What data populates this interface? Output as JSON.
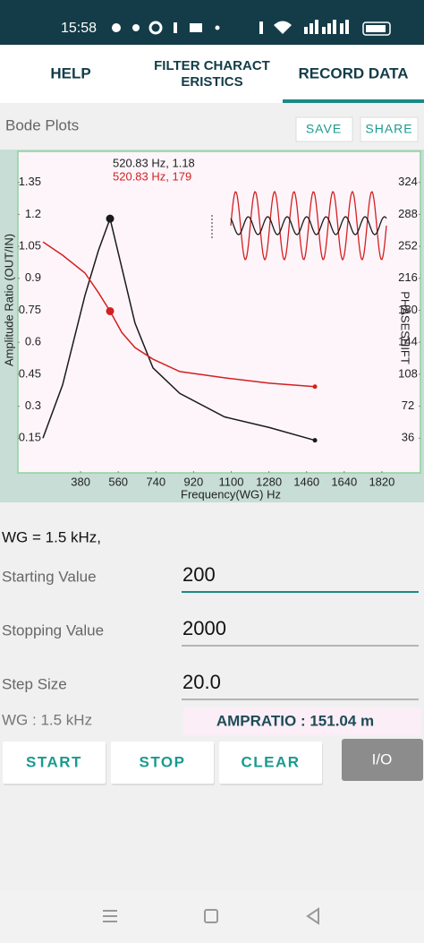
{
  "status_bar": {
    "time": "15:58"
  },
  "tabs": [
    {
      "label_lines": [
        "HELP"
      ]
    },
    {
      "label_lines": [
        "FILTER CHARACT",
        "ERISTICS"
      ]
    },
    {
      "label_lines": [
        "RECORD DATA"
      ]
    }
  ],
  "section": {
    "title": "Bode Plots",
    "buttons": [
      "SAVE",
      "SHARE"
    ]
  },
  "chart_data": {
    "type": "line",
    "x_label": "Frequency(WG) Hz",
    "y_label": "Amplitude Ratio (OUT/IN)",
    "y2_label": "PHASESHIFT",
    "annotations": [
      {
        "text": "520.83 Hz, 1.18",
        "color": "#222222"
      },
      {
        "text": "520.83 Hz, 179",
        "color": "#d42020"
      }
    ],
    "x": [
      200,
      294,
      401,
      465,
      520.83,
      577,
      640,
      726,
      854,
      1068,
      1282,
      1500
    ],
    "series": [
      {
        "color": "#1a1a1a",
        "values": [
          0.15,
          0.4,
          0.82,
          1.03,
          1.18,
          0.95,
          0.69,
          0.48,
          0.36,
          0.25,
          0.2,
          0.14
        ]
      },
      {
        "color": "#d42020",
        "axis": "y2",
        "values": [
          257,
          242,
          222,
          200,
          179,
          155,
          138,
          125,
          111,
          104,
          98,
          94
        ]
      }
    ],
    "xlim": [
      200,
      2000
    ],
    "xticks": [
      380,
      560,
      740,
      920,
      1100,
      1280,
      1460,
      1640,
      1820
    ],
    "ylim": [
      0,
      1.5
    ],
    "yticks": [
      0.15,
      0.3,
      0.45,
      0.6,
      0.75,
      0.9,
      1.05,
      1.2,
      1.35
    ],
    "y2lim": [
      0,
      360
    ],
    "y2ticks": [
      36,
      72,
      108,
      144,
      180,
      216,
      252,
      288,
      324
    ],
    "grid": false
  },
  "form": {
    "wg_header": "WG = 1.5 kHz,",
    "fields": [
      {
        "label": "Starting Value",
        "value": "200"
      },
      {
        "label": "Stopping Value",
        "value": "2000"
      },
      {
        "label": "Step Size",
        "value": "20.0"
      }
    ]
  },
  "readout": {
    "wg": "WG : 1.5 kHz",
    "ampratio": "AMPRATIO : 151.04 m"
  },
  "controls": [
    "START",
    "STOP",
    "CLEAR",
    "I/O"
  ]
}
